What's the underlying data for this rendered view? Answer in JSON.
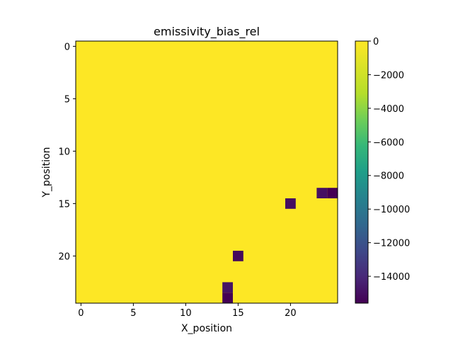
{
  "chart_data": {
    "type": "heatmap",
    "title": "emissivity_bias_rel",
    "xlabel": "X_position",
    "ylabel": "Y_position",
    "grid_shape": [
      25,
      25
    ],
    "x_ticks": [
      0,
      5,
      10,
      15,
      20
    ],
    "y_ticks": [
      0,
      5,
      10,
      15,
      20
    ],
    "xlim": [
      -0.5,
      24.5
    ],
    "ylim": [
      24.5,
      -0.5
    ],
    "background_value": 0,
    "anomalies": [
      {
        "x": 23,
        "y": 14,
        "value": -15000
      },
      {
        "x": 24,
        "y": 14,
        "value": -15600
      },
      {
        "x": 20,
        "y": 15,
        "value": -15100
      },
      {
        "x": 15,
        "y": 20,
        "value": -15300
      },
      {
        "x": 14,
        "y": 23,
        "value": -14900
      },
      {
        "x": 14,
        "y": 24,
        "value": -15600
      }
    ],
    "colorbar": {
      "colormap": "viridis",
      "vmin": -15600,
      "vmax": 0,
      "ticks": [
        0,
        -2000,
        -4000,
        -6000,
        -8000,
        -10000,
        -12000,
        -14000
      ],
      "tick_labels": [
        "0",
        "−2000",
        "−4000",
        "−6000",
        "−8000",
        "−10000",
        "−12000",
        "−14000"
      ]
    }
  }
}
